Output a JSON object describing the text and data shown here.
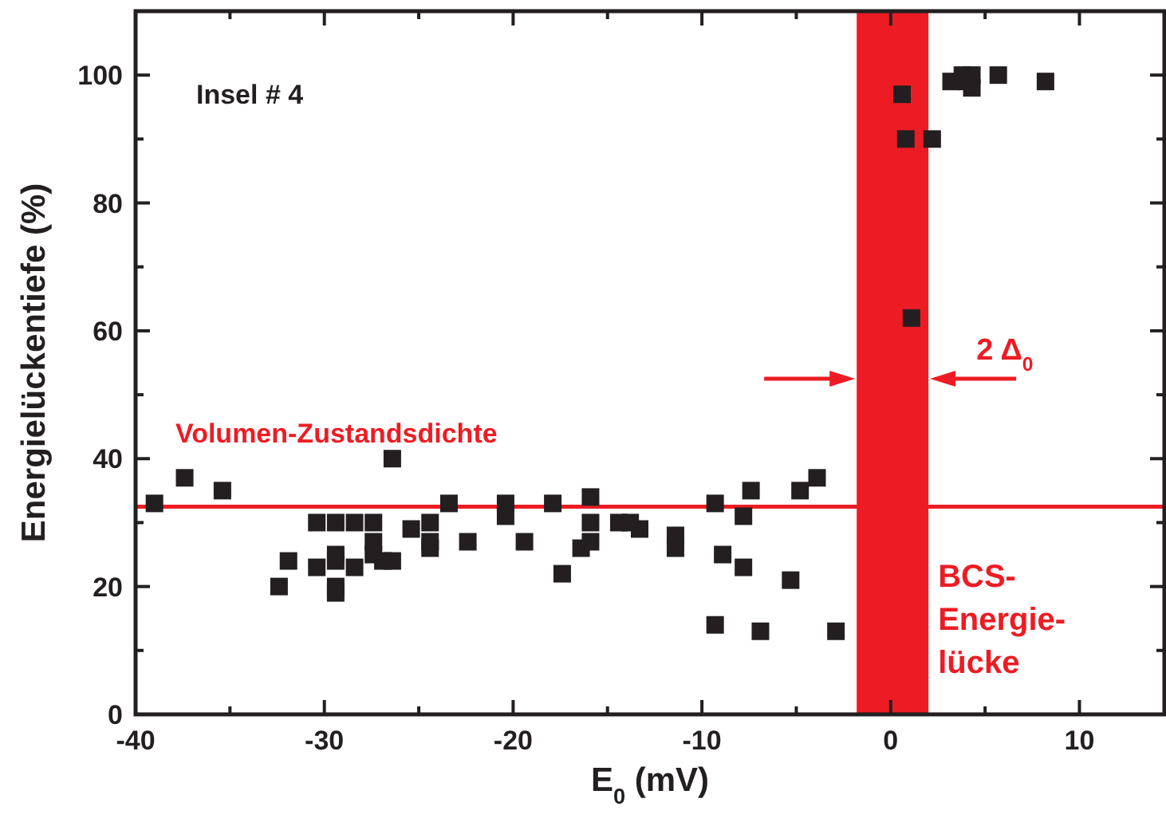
{
  "chart_data": {
    "type": "scatter",
    "xlabel": "E$_{0}$ (mV)",
    "ylabel": "Energielückentiefe (%)",
    "xlim": [
      -40,
      14.5
    ],
    "ylim": [
      0,
      110
    ],
    "xticks": [
      -40,
      {
        "value": -35,
        "label": null
      },
      -30,
      {
        "value": -25,
        "label": null
      },
      -20,
      {
        "value": -15,
        "label": null
      },
      -10,
      {
        "value": -5,
        "label": null
      },
      0,
      {
        "value": 5,
        "label": null
      },
      10
    ],
    "yticks": [
      0,
      {
        "value": 10,
        "label": null
      },
      20,
      {
        "value": 30,
        "label": null
      },
      40,
      {
        "value": 50,
        "label": null
      },
      60,
      {
        "value": 70,
        "label": null
      },
      80,
      {
        "value": 90,
        "label": null
      },
      100
    ],
    "marker": "square",
    "grid": false,
    "series": [
      {
        "color": "#231f20",
        "x": [
          -39.0,
          -37.4,
          -35.4,
          -26.4,
          -32.4,
          -31.9,
          -30.4,
          -30.4,
          -29.4,
          -29.4,
          -29.4,
          -29.4,
          -29.4,
          -28.4,
          -28.4,
          -27.4,
          -27.4,
          -27.4,
          -26.9,
          -26.4,
          -25.4,
          -24.4,
          -24.4,
          -24.4,
          -23.4,
          -22.4,
          -20.4,
          -20.4,
          -19.4,
          -17.9,
          -17.4,
          -16.4,
          -15.9,
          -15.9,
          -15.9,
          -14.4,
          -13.8,
          -13.3,
          -11.4,
          -11.4,
          -9.3,
          -7.4,
          -7.8,
          -8.9,
          -7.8,
          -4.8,
          -3.9,
          -5.3,
          -9.3,
          -6.9,
          -2.9,
          0.6,
          0.8,
          2.2,
          1.1,
          3.2,
          3.8,
          4.0,
          4.3,
          4.3,
          5.7,
          8.2
        ],
        "values": [
          33,
          37,
          35,
          40,
          20,
          24,
          30,
          23,
          30,
          25,
          24,
          20,
          19,
          30,
          23,
          30,
          27,
          25,
          24,
          24,
          29,
          30,
          27,
          26,
          33,
          27,
          33,
          31,
          27,
          33,
          22,
          26,
          34,
          30,
          27,
          30,
          30,
          29,
          28,
          26,
          33,
          35,
          31,
          25,
          23,
          35,
          37,
          21,
          14,
          13,
          13,
          97,
          90,
          90,
          62,
          99,
          100,
          99,
          98,
          100,
          100,
          99
        ]
      }
    ],
    "ref_lines": [
      {
        "axis": "y",
        "value": 32.5,
        "label": "Volumen-Zustandsdichte",
        "color": "#ed1c24"
      }
    ],
    "bands": [
      {
        "axis": "x",
        "from": -1.8,
        "to": 2.0,
        "label": "BCS-Energie-lücke",
        "color": "#ed1c24"
      }
    ],
    "annotations": [
      "Insel # 4",
      "2 Δ$_{0}$"
    ]
  }
}
